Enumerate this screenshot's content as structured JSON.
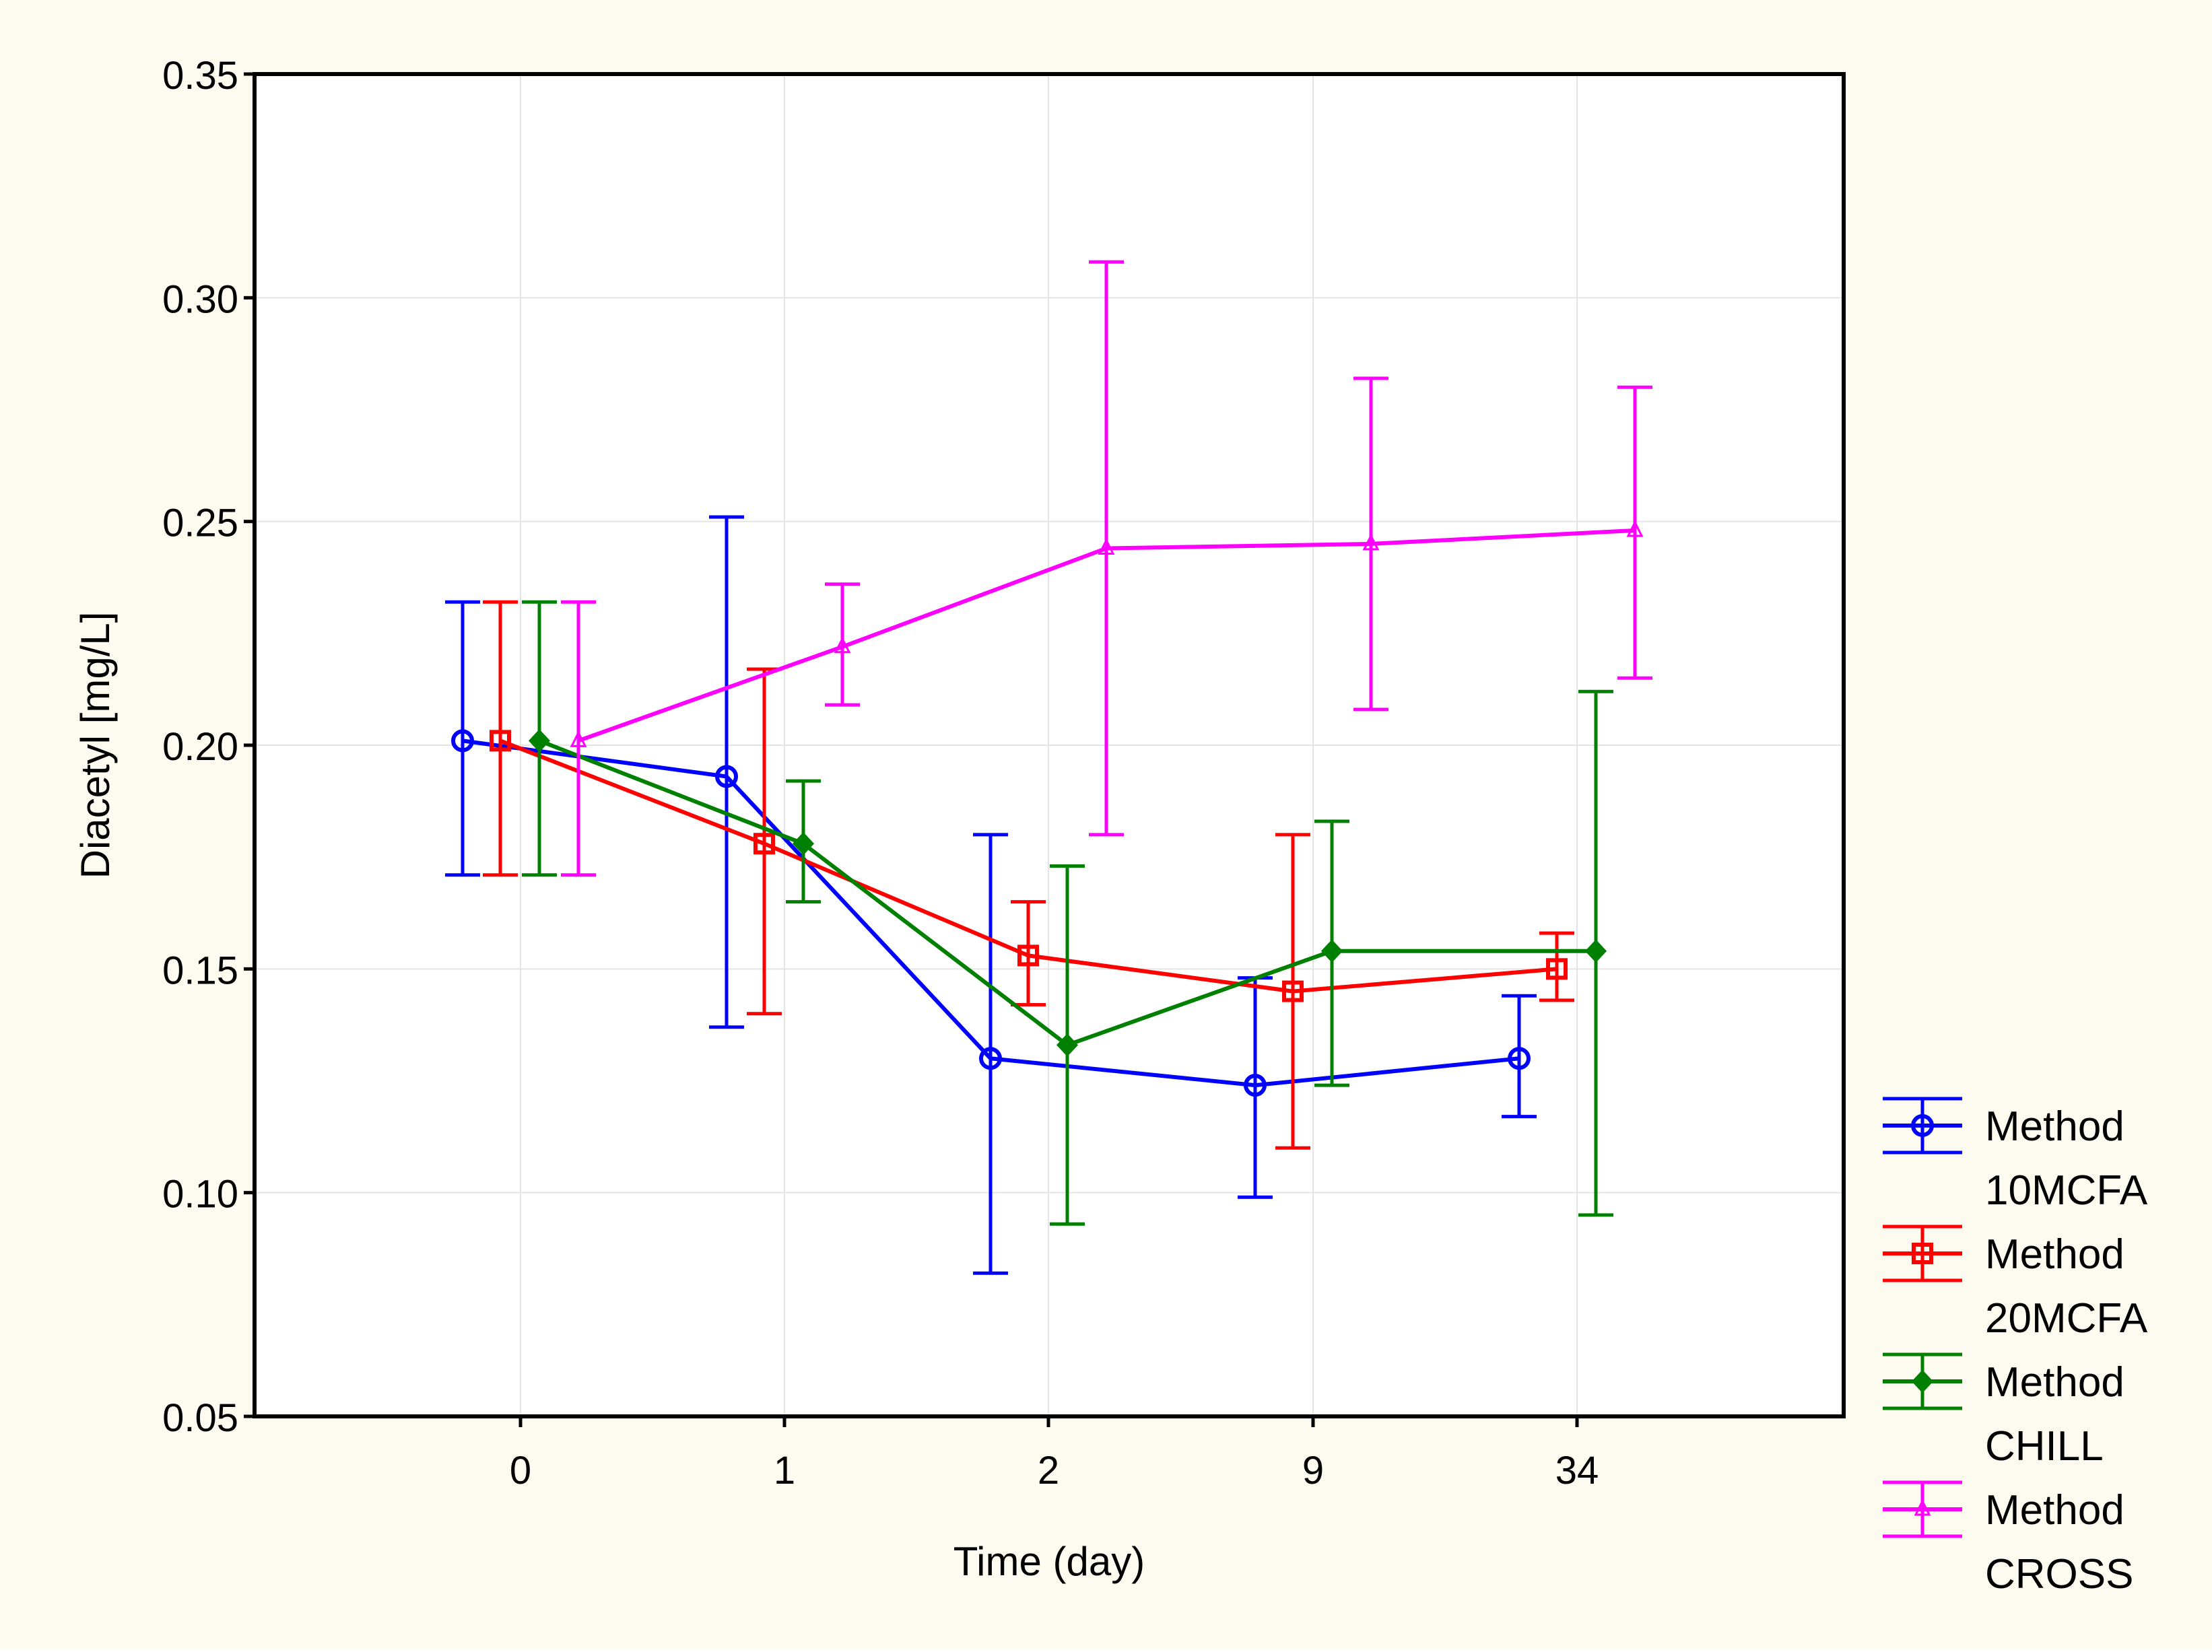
{
  "colors": {
    "background": "#fdfaf0",
    "plot_background": "#ffffff",
    "grid": "#e4e4e4"
  },
  "chart_data": {
    "type": "line",
    "title": "",
    "xlabel": "Time (day)",
    "ylabel": "Diacetyl [mg/L]",
    "categories": [
      "0",
      "1",
      "2",
      "9",
      "34"
    ],
    "ylim": [
      0.05,
      0.35
    ],
    "yticks": [
      0.05,
      0.1,
      0.15,
      0.2,
      0.25,
      0.3,
      0.35
    ],
    "ytick_labels": [
      "0.05",
      "0.10",
      "0.15",
      "0.20",
      "0.25",
      "0.30",
      "0.35"
    ],
    "grid": true,
    "legend_position": "right-bottom",
    "error_bars": true,
    "series": [
      {
        "name": "Method 10MCFA",
        "legend_line1": "Method",
        "legend_line2": "10MCFA",
        "color": "#0000ff",
        "marker": "circle",
        "values": [
          0.201,
          0.193,
          0.13,
          0.124,
          0.13
        ],
        "lower": [
          0.171,
          0.137,
          0.082,
          0.099,
          0.117
        ],
        "upper": [
          0.232,
          0.251,
          0.18,
          0.148,
          0.144
        ]
      },
      {
        "name": "Method 20MCFA",
        "legend_line1": "Method",
        "legend_line2": "20MCFA",
        "color": "#ff0000",
        "marker": "square",
        "values": [
          0.201,
          0.178,
          0.153,
          0.145,
          0.15
        ],
        "lower": [
          0.171,
          0.14,
          0.142,
          0.11,
          0.143
        ],
        "upper": [
          0.232,
          0.217,
          0.165,
          0.18,
          0.158
        ]
      },
      {
        "name": "Method CHILL",
        "legend_line1": "Method",
        "legend_line2": "CHILL",
        "color": "#008000",
        "marker": "diamond",
        "values": [
          0.201,
          0.178,
          0.133,
          0.154,
          0.154
        ],
        "lower": [
          0.171,
          0.165,
          0.093,
          0.124,
          0.095
        ],
        "upper": [
          0.232,
          0.192,
          0.173,
          0.183,
          0.212
        ]
      },
      {
        "name": "Method CROSS",
        "legend_line1": "Method",
        "legend_line2": "CROSS",
        "color": "#ff00ff",
        "marker": "triangle",
        "values": [
          0.201,
          0.222,
          0.244,
          0.245,
          0.248
        ],
        "lower": [
          0.171,
          0.209,
          0.18,
          0.208,
          0.215
        ],
        "upper": [
          0.232,
          0.236,
          0.308,
          0.282,
          0.28
        ]
      }
    ]
  }
}
